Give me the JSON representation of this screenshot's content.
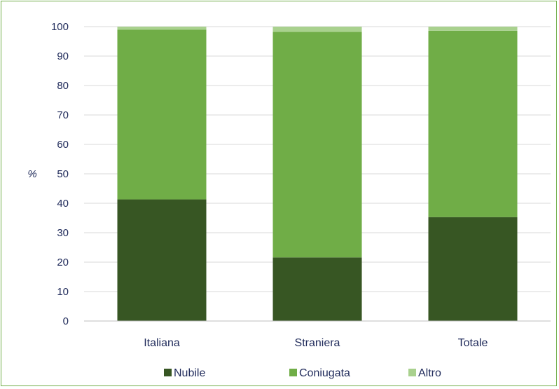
{
  "chart_data": {
    "type": "bar",
    "stacked": true,
    "title": "",
    "xlabel": "",
    "ylabel": "%",
    "ylim": [
      0,
      100
    ],
    "yticks": [
      0,
      10,
      20,
      30,
      40,
      50,
      60,
      70,
      80,
      90,
      100
    ],
    "grid": true,
    "legend_position": "bottom",
    "categories": [
      "Italiana",
      "Straniera",
      "Totale"
    ],
    "series": [
      {
        "name": "Nubile",
        "color": "#375623",
        "values": [
          41.3,
          21.6,
          35.3
        ]
      },
      {
        "name": "Coniugata",
        "color": "#70ad47",
        "values": [
          57.7,
          76.6,
          63.3
        ]
      },
      {
        "name": "Altro",
        "color": "#a9d18e",
        "values": [
          1.0,
          1.8,
          1.4
        ]
      }
    ]
  }
}
